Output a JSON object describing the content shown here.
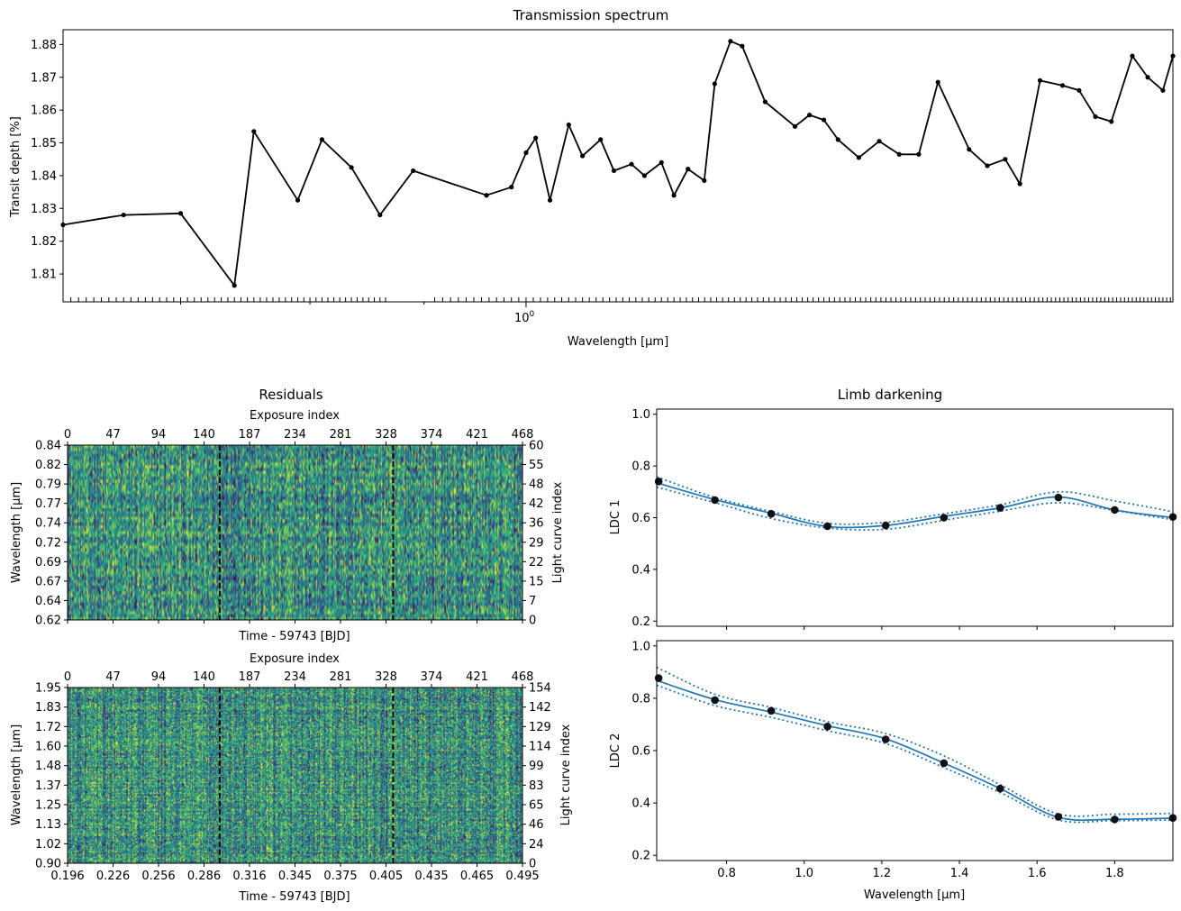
{
  "chart_data": [
    {
      "type": "line",
      "title": "Transmission spectrum",
      "xlabel": "Wavelength [$\\mu$m]",
      "ylabel": "Transit depth [%]",
      "x_scale": "log",
      "xlim": [
        0.62,
        1.95
      ],
      "ylim": [
        1.8015,
        1.8845
      ],
      "yticks": [
        "1.81",
        "1.82",
        "1.83",
        "1.84",
        "1.85",
        "1.86",
        "1.87",
        "1.88"
      ],
      "xtick_major_label": "10",
      "xtick_major_exp": "0",
      "series": [
        {
          "color": "#000000",
          "x": [
            0.62,
            0.66,
            0.7,
            0.74,
            0.755,
            0.79,
            0.81,
            0.835,
            0.86,
            0.89,
            0.96,
            0.985,
            1.0,
            1.01,
            1.025,
            1.045,
            1.06,
            1.08,
            1.095,
            1.115,
            1.13,
            1.15,
            1.165,
            1.182,
            1.202,
            1.215,
            1.235,
            1.25,
            1.28,
            1.32,
            1.34,
            1.36,
            1.38,
            1.41,
            1.44,
            1.47,
            1.5,
            1.53,
            1.58,
            1.61,
            1.64,
            1.665,
            1.7,
            1.74,
            1.77,
            1.8,
            1.83,
            1.87,
            1.9,
            1.93,
            1.95
          ],
          "values": [
            1.825,
            1.828,
            1.8285,
            1.8065,
            1.8535,
            1.8325,
            1.851,
            1.8425,
            1.828,
            1.8415,
            1.834,
            1.8365,
            1.847,
            1.8515,
            1.8325,
            1.8555,
            1.846,
            1.851,
            1.8415,
            1.8435,
            1.84,
            1.844,
            1.834,
            1.842,
            1.8385,
            1.868,
            1.881,
            1.8795,
            1.8625,
            1.855,
            1.8585,
            1.857,
            1.851,
            1.8455,
            1.8505,
            1.8465,
            1.8465,
            1.8685,
            1.848,
            1.843,
            1.845,
            1.8375,
            1.869,
            1.8675,
            1.866,
            1.858,
            1.8565,
            1.8765,
            1.87,
            1.866,
            1.8765
          ]
        }
      ]
    },
    {
      "type": "heatmap",
      "title": "Residuals",
      "xlabel": "Time - 59743 [BJD]",
      "ylabel": "Wavelength [$\\mu$m]",
      "top_xlabel": "Exposure index",
      "right_ylabel": "Light curve index",
      "xlim": [
        0.196,
        0.495
      ],
      "ylim": [
        0.62,
        0.84
      ],
      "yticks": [
        "0.62",
        "0.64",
        "0.67",
        "0.69",
        "0.72",
        "0.74",
        "0.77",
        "0.79",
        "0.82",
        "0.84"
      ],
      "top_ticks": [
        "0",
        "47",
        "94",
        "140",
        "187",
        "234",
        "281",
        "328",
        "374",
        "421",
        "468"
      ],
      "right_ticks": [
        "0",
        "7",
        "15",
        "22",
        "29",
        "36",
        "42",
        "48",
        "55",
        "60"
      ],
      "vlines": [
        0.296,
        0.41
      ],
      "colormap": "viridis"
    },
    {
      "type": "heatmap",
      "xlabel": "Time - 59743 [BJD]",
      "ylabel": "Wavelength [$\\mu$m]",
      "top_xlabel": "Exposure index",
      "right_ylabel": "Light curve index",
      "xlim": [
        0.196,
        0.495
      ],
      "ylim": [
        0.9,
        1.95
      ],
      "xticks": [
        "0.196",
        "0.226",
        "0.256",
        "0.286",
        "0.316",
        "0.345",
        "0.375",
        "0.405",
        "0.435",
        "0.465",
        "0.495"
      ],
      "yticks": [
        "0.90",
        "1.02",
        "1.13",
        "1.25",
        "1.37",
        "1.48",
        "1.60",
        "1.72",
        "1.83",
        "1.95"
      ],
      "top_ticks": [
        "0",
        "47",
        "94",
        "140",
        "187",
        "234",
        "281",
        "328",
        "374",
        "421",
        "468"
      ],
      "right_ticks": [
        "0",
        "24",
        "46",
        "65",
        "83",
        "99",
        "114",
        "129",
        "142",
        "154"
      ],
      "vlines": [
        0.296,
        0.41
      ],
      "colormap": "viridis"
    },
    {
      "type": "line",
      "title": "Limb darkening",
      "ylabel": "LDC 1",
      "xlim": [
        0.62,
        1.95
      ],
      "ylim": [
        0.18,
        1.02
      ],
      "yticks": [
        "0.2",
        "0.4",
        "0.6",
        "0.8",
        "1.0"
      ],
      "points": {
        "x": [
          0.625,
          0.77,
          0.915,
          1.06,
          1.21,
          1.36,
          1.505,
          1.655,
          1.8,
          1.95
        ],
        "values": [
          0.74,
          0.668,
          0.615,
          0.567,
          0.57,
          0.6,
          0.638,
          0.678,
          0.63,
          0.603
        ]
      },
      "series": [
        {
          "color": "#1f77b4",
          "style": "solid",
          "x": [
            0.62,
            0.77,
            0.915,
            1.06,
            1.21,
            1.36,
            1.505,
            1.655,
            1.8,
            1.95
          ],
          "values": [
            0.735,
            0.67,
            0.617,
            0.566,
            0.57,
            0.605,
            0.638,
            0.68,
            0.63,
            0.6
          ]
        },
        {
          "color": "#1f77b4",
          "style": "dotted",
          "x": [
            0.62,
            0.77,
            0.915,
            1.06,
            1.21,
            1.36,
            1.505,
            1.655,
            1.8,
            1.95
          ],
          "values": [
            0.758,
            0.678,
            0.624,
            0.578,
            0.582,
            0.615,
            0.65,
            0.7,
            0.665,
            0.623
          ]
        },
        {
          "color": "#1f77b4",
          "style": "dotted",
          "x": [
            0.62,
            0.77,
            0.915,
            1.06,
            1.21,
            1.36,
            1.505,
            1.655,
            1.8,
            1.95
          ],
          "values": [
            0.718,
            0.658,
            0.597,
            0.56,
            0.555,
            0.59,
            0.625,
            0.658,
            0.628,
            0.592
          ]
        }
      ]
    },
    {
      "type": "line",
      "xlabel": "Wavelength [$\\mu$m]",
      "ylabel": "LDC 2",
      "xlim": [
        0.62,
        1.95
      ],
      "ylim": [
        0.18,
        1.02
      ],
      "xticks": [
        "0.8",
        "1.0",
        "1.2",
        "1.4",
        "1.6",
        "1.8"
      ],
      "yticks": [
        "0.2",
        "0.4",
        "0.6",
        "0.8",
        "1.0"
      ],
      "points": {
        "x": [
          0.625,
          0.77,
          0.915,
          1.06,
          1.21,
          1.36,
          1.505,
          1.655,
          1.8,
          1.95
        ],
        "values": [
          0.877,
          0.793,
          0.752,
          0.692,
          0.643,
          0.552,
          0.455,
          0.347,
          0.337,
          0.343
        ]
      },
      "series": [
        {
          "color": "#1f77b4",
          "style": "solid",
          "x": [
            0.62,
            0.77,
            0.915,
            1.06,
            1.21,
            1.36,
            1.505,
            1.655,
            1.8,
            1.95
          ],
          "values": [
            0.868,
            0.795,
            0.747,
            0.695,
            0.645,
            0.552,
            0.455,
            0.345,
            0.338,
            0.342
          ]
        },
        {
          "color": "#1f77b4",
          "style": "dotted",
          "x": [
            0.62,
            0.77,
            0.915,
            1.06,
            1.21,
            1.36,
            1.505,
            1.655,
            1.8,
            1.95
          ],
          "values": [
            0.918,
            0.815,
            0.765,
            0.71,
            0.665,
            0.58,
            0.47,
            0.358,
            0.357,
            0.36
          ]
        },
        {
          "color": "#1f77b4",
          "style": "dotted",
          "x": [
            0.62,
            0.77,
            0.915,
            1.06,
            1.21,
            1.36,
            1.505,
            1.655,
            1.8,
            1.95
          ],
          "values": [
            0.85,
            0.772,
            0.727,
            0.676,
            0.627,
            0.535,
            0.44,
            0.335,
            0.333,
            0.335
          ]
        }
      ]
    }
  ]
}
